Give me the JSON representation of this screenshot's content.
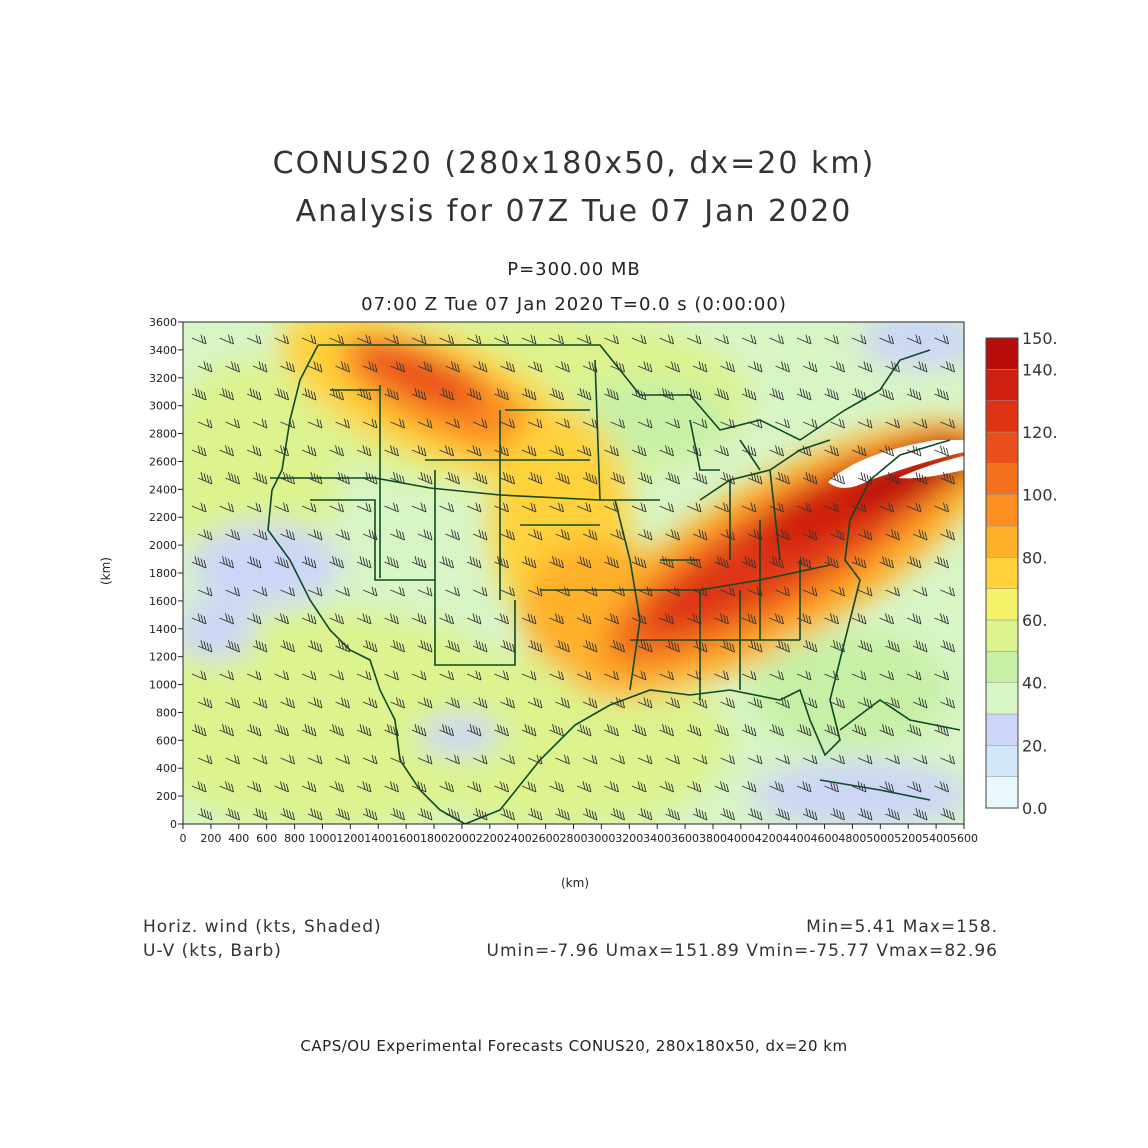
{
  "title_line1": "CONUS20 (280x180x50, dx=20 km)",
  "title_line2": "Analysis for 07Z Tue 07 Jan 2020",
  "level": "P=300.00 MB",
  "valid_time": "07:00 Z Tue 07 Jan 2020    T=0.0 s (0:00:00)",
  "axes": {
    "x_unit": "(km)",
    "y_unit": "(km)",
    "x_ticks": [
      "0",
      "200",
      "400",
      "600",
      "800",
      "1000",
      "1200",
      "1400",
      "1600",
      "1800",
      "2000",
      "2200",
      "2400",
      "2600",
      "2800",
      "3000",
      "3200",
      "3400",
      "3600",
      "3800",
      "4000",
      "4200",
      "4400",
      "4600",
      "4800",
      "5000",
      "5200",
      "5400",
      "5600"
    ],
    "y_ticks": [
      "0",
      "200",
      "400",
      "600",
      "800",
      "1000",
      "1200",
      "1400",
      "1600",
      "1800",
      "2000",
      "2200",
      "2400",
      "2600",
      "2800",
      "3000",
      "3200",
      "3400",
      "3600"
    ],
    "x_range": [
      0,
      5600
    ],
    "y_range": [
      0,
      3600
    ]
  },
  "colorbar": {
    "labels": [
      "150.",
      "140.",
      "120.",
      "100.",
      "80.",
      "60.",
      "40.",
      "20.",
      "0.0"
    ],
    "levels": [
      0,
      10,
      20,
      30,
      40,
      50,
      60,
      70,
      80,
      90,
      100,
      110,
      120,
      130,
      140,
      150
    ],
    "colors": [
      "#e8f8fc",
      "#d3e7fb",
      "#cdd6f7",
      "#d8f5c6",
      "#c7f0a6",
      "#dcf38e",
      "#f4f16b",
      "#ffd13a",
      "#ffb02a",
      "#fb8f22",
      "#f3701d",
      "#ea501b",
      "#de3415",
      "#cf1f10",
      "#b80d0a"
    ]
  },
  "legend_left": {
    "line1": "Horiz. wind (kts, Shaded)",
    "line2": "U-V (kts, Barb)"
  },
  "legend_right": {
    "line1": "Min=5.41 Max=158.",
    "line2": "Umin=-7.96 Umax=151.89 Vmin=-75.77 Vmax=82.96"
  },
  "footer": "CAPS/OU Experimental Forecasts   CONUS20, 280x180x50, dx=20 km"
}
